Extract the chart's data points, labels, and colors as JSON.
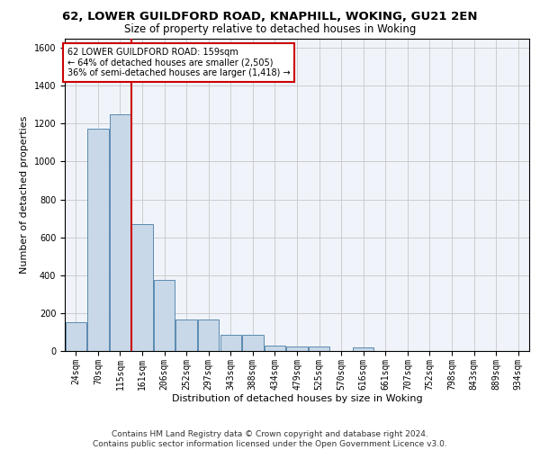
{
  "title1": "62, LOWER GUILDFORD ROAD, KNAPHILL, WOKING, GU21 2EN",
  "title2": "Size of property relative to detached houses in Woking",
  "xlabel": "Distribution of detached houses by size in Woking",
  "ylabel": "Number of detached properties",
  "footer1": "Contains HM Land Registry data © Crown copyright and database right 2024.",
  "footer2": "Contains public sector information licensed under the Open Government Licence v3.0.",
  "annotation_line1": "62 LOWER GUILDFORD ROAD: 159sqm",
  "annotation_line2": "← 64% of detached houses are smaller (2,505)",
  "annotation_line3": "36% of semi-detached houses are larger (1,418) →",
  "bar_labels": [
    "24sqm",
    "70sqm",
    "115sqm",
    "161sqm",
    "206sqm",
    "252sqm",
    "297sqm",
    "343sqm",
    "388sqm",
    "434sqm",
    "479sqm",
    "525sqm",
    "570sqm",
    "616sqm",
    "661sqm",
    "707sqm",
    "752sqm",
    "798sqm",
    "843sqm",
    "889sqm",
    "934sqm"
  ],
  "bar_values": [
    150,
    1175,
    1250,
    670,
    375,
    165,
    165,
    85,
    85,
    30,
    25,
    25,
    0,
    20,
    0,
    0,
    0,
    0,
    0,
    0,
    0
  ],
  "bar_color": "#c8d8e8",
  "bar_edgecolor": "#5a8ab0",
  "vline_x": 2.5,
  "vline_color": "#cc0000",
  "vline_linewidth": 1.5,
  "ylim": [
    0,
    1650
  ],
  "yticks": [
    0,
    200,
    400,
    600,
    800,
    1000,
    1200,
    1400,
    1600
  ],
  "grid_color": "#cccccc",
  "bg_color": "#f0f4fa",
  "annotation_box_color": "#cc0000",
  "title_fontsize": 9.5,
  "subtitle_fontsize": 8.5,
  "axis_label_fontsize": 8,
  "tick_fontsize": 7,
  "footer_fontsize": 6.5,
  "annotation_fontsize": 7
}
